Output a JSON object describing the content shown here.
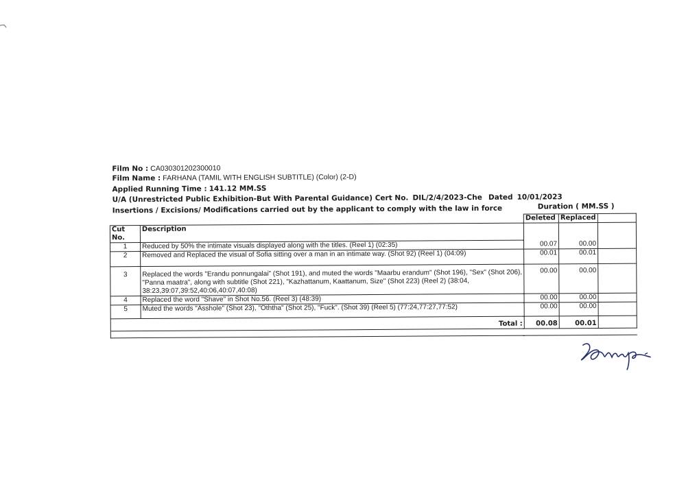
{
  "film_no": {
    "label": "Film No :",
    "value": "CA030301202300010"
  },
  "film_name": {
    "label": "Film Name :",
    "value": "FARHANA (TAMIL WITH ENGLISH SUBTITLE) (Color) (2-D)"
  },
  "running_time": {
    "label": "Applied Running Time :",
    "value": "141.12 MM.SS"
  },
  "certificate": {
    "text": "U/A (Unrestricted Public Exhibition-But With Parental Guidance) Cert No.",
    "cert_no": "DIL/2/4/2023-Che",
    "dated_label": "Dated",
    "date": "10/01/2023"
  },
  "section_title": "Insertions / Excisions/ Modifications carried out by the applicant to comply with the  law in force",
  "duration_header": "Duration ( MM.SS )",
  "table": {
    "headers": {
      "cut_no": "Cut No.",
      "description": "Description",
      "deleted": "Deleted",
      "replaced": "Replaced"
    },
    "rows": [
      {
        "cut_no": "1",
        "description": "Reduced by 50% the intimate visuals displayed along with the titles. (Reel 1) (02:35)",
        "deleted": "00.07",
        "replaced": "00.00"
      },
      {
        "cut_no": "2",
        "description": "Removed and Replaced the visual of Sofia sitting over a man in an intimate way. (Shot 92) (Reel 1) (04:09)",
        "deleted": "00.01",
        "replaced": "00.01"
      },
      {
        "cut_no": "3",
        "description": "Replaced the words \"Erandu ponnungalai\" (Shot 191), and muted the words \"Maarbu erandum\" (Shot 196), \"Sex\" (Shot 206),  \"Panna maatra\", along with subtitle (Shot 221), \"Kazhattanum, Kaattanum, Size\" (Shot 223) (Reel 2) (38:04, 38:23,39:07,39:52,40:06,40:07,40:08)",
        "deleted": "00.00",
        "replaced": "00.00"
      },
      {
        "cut_no": "4",
        "description": "Replaced the word \"Shave\" in Shot No.56. (Reel 3) (48:39)",
        "deleted": "00.00",
        "replaced": "00.00"
      },
      {
        "cut_no": "5",
        "description": "Muted the words \"Asshole\" (Shot 23), \"Oththa\" (Shot 25), \"Fuck\". (Shot 39) (Reel 5) (77:24,77:27,77:52)",
        "deleted": "00.00",
        "replaced": "00.00"
      }
    ],
    "total": {
      "label": "Total :",
      "deleted": "00.08",
      "replaced": "00.01"
    }
  },
  "signature_icon": "handwritten-signature"
}
